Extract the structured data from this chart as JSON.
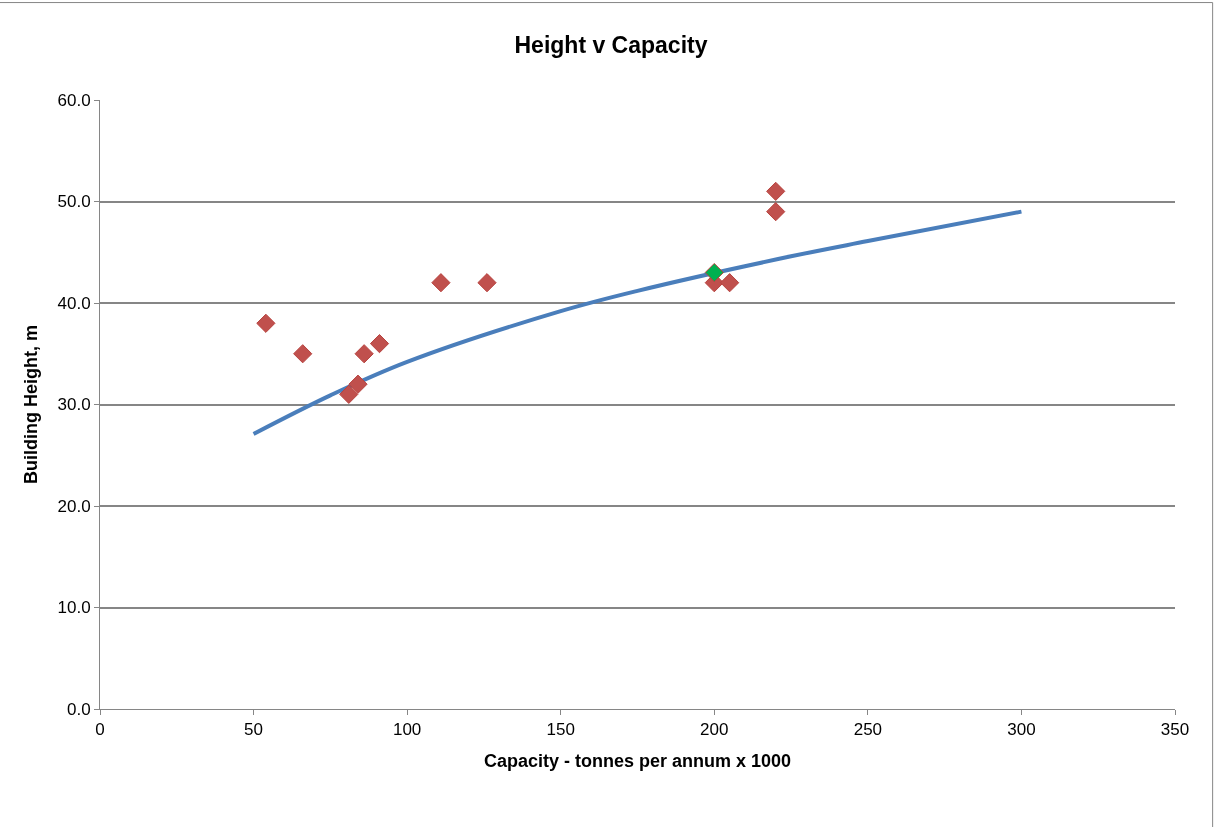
{
  "chart_data": {
    "type": "scatter",
    "title": "Height v Capacity",
    "xlabel": "Capacity - tonnes per annum x 1000",
    "ylabel": "Building Height, m",
    "xlim": [
      0,
      350
    ],
    "xticks": [
      0,
      50,
      100,
      150,
      200,
      250,
      300,
      350
    ],
    "ylim": [
      0,
      60
    ],
    "yticks": [
      {
        "value": 0,
        "label": "0.0"
      },
      {
        "value": 10,
        "label": "10.0"
      },
      {
        "value": 20,
        "label": "20.0"
      },
      {
        "value": 30,
        "label": "30.0"
      },
      {
        "value": 40,
        "label": "40.0"
      },
      {
        "value": 50,
        "label": "50.0"
      },
      {
        "value": 60,
        "label": "60.0"
      }
    ],
    "grid": "y",
    "marker": "diamond",
    "series": [
      {
        "type": "line",
        "color": "#4a7ebb",
        "marker": "none",
        "x": [
          50,
          75,
          100,
          150,
          175,
          225,
          250,
          300
        ],
        "values": [
          27.1,
          30.9,
          34.2,
          39.2,
          41.2,
          44.6,
          46.1,
          49.0
        ]
      },
      {
        "color": "#c0504d",
        "x": [
          54,
          66,
          81,
          84,
          86,
          91,
          111,
          126,
          198,
          200,
          205,
          220,
          220
        ],
        "values": [
          38,
          35,
          31,
          32,
          35,
          36,
          42,
          42,
          null,
          42,
          42,
          51,
          49
        ]
      },
      {
        "color": "#00b050",
        "x": [
          200
        ],
        "values": [
          43
        ]
      }
    ]
  }
}
